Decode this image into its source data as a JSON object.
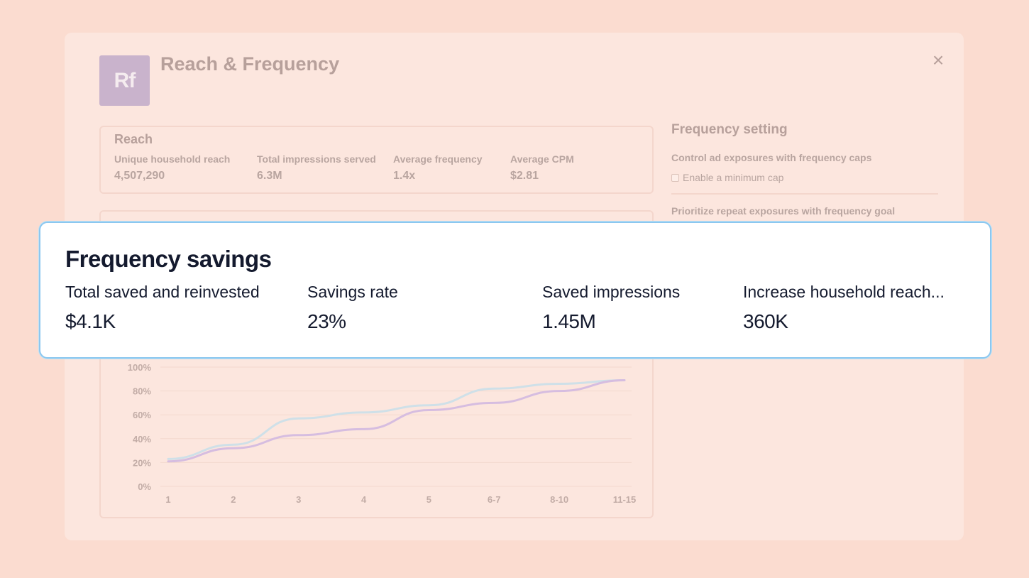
{
  "dialog": {
    "logo_text": "Rf",
    "title": "Reach & Frequency",
    "close_icon": "close-icon",
    "reach_card": {
      "title": "Reach",
      "metrics": [
        {
          "label": "Unique household reach",
          "value": "4,507,290"
        },
        {
          "label": "Total impressions served",
          "value": "6.3M"
        },
        {
          "label": "Average frequency",
          "value": "1.4x"
        },
        {
          "label": "Average CPM",
          "value": "$2.81"
        }
      ]
    },
    "side_panel": {
      "title": "Frequency setting",
      "subtitle": "Control ad exposures with frequency caps",
      "checkbox_label": "Enable a minimum cap",
      "checkbox_checked": false,
      "subtitle2": "Prioritize repeat exposures with frequency goal"
    }
  },
  "chart_data": {
    "type": "line",
    "categories": [
      "1",
      "2",
      "3",
      "4",
      "5",
      "6-7",
      "8-10",
      "11-15"
    ],
    "y_ticks": [
      "100%",
      "80%",
      "60%",
      "40%",
      "20%",
      "0%"
    ],
    "ylim": [
      0,
      100
    ],
    "grid": true,
    "series": [
      {
        "color": "#cfe0e8",
        "values": [
          23,
          35,
          57,
          62,
          68,
          82,
          86,
          89
        ]
      },
      {
        "color": "#d6bde0",
        "values": [
          21,
          32,
          43,
          48,
          64,
          70,
          80,
          89
        ]
      }
    ]
  },
  "overlay": {
    "title": "Frequency savings",
    "stats": [
      {
        "label": "Total saved and reinvested",
        "value": "$4.1K"
      },
      {
        "label": "Savings rate",
        "value": "23%"
      },
      {
        "label": "Saved impressions",
        "value": "1.45M"
      },
      {
        "label": "Increase household reach...",
        "value": "360K"
      }
    ]
  }
}
